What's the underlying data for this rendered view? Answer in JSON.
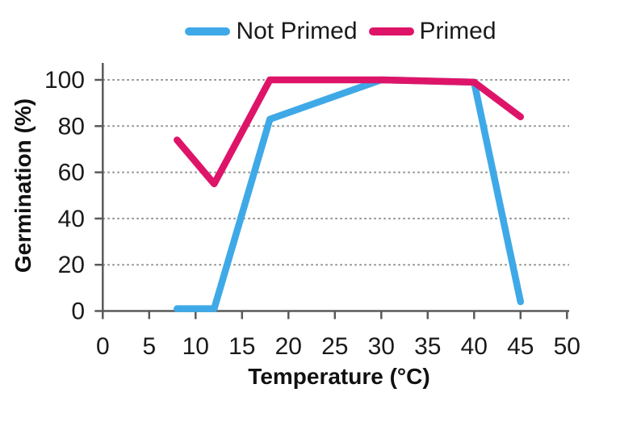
{
  "chart_data": {
    "type": "line",
    "title": "",
    "xlabel": "Temperature (°C)",
    "ylabel": "Germination (%)",
    "xlim": [
      0,
      50
    ],
    "ylim": [
      0,
      100
    ],
    "xticks": [
      0,
      5,
      10,
      15,
      20,
      25,
      30,
      35,
      40,
      45,
      50
    ],
    "yticks": [
      0,
      20,
      40,
      60,
      80,
      100
    ],
    "grid": "horizontal-dashed",
    "legend_position": "top-center",
    "colors": {
      "axis": "#595959",
      "gridline": "#8a8f8a",
      "text": "#1a1a1a",
      "not_primed": "#3fa9e8",
      "primed": "#de1469"
    },
    "series": [
      {
        "name": "Not Primed",
        "color": "#3fa9e8",
        "x": [
          8,
          12,
          18,
          30,
          40,
          45
        ],
        "y": [
          1,
          1,
          83,
          100,
          99,
          4
        ]
      },
      {
        "name": "Primed",
        "color": "#de1469",
        "x": [
          8,
          12,
          18,
          30,
          40,
          45
        ],
        "y": [
          74,
          55,
          100,
          100,
          99,
          84
        ]
      }
    ]
  }
}
